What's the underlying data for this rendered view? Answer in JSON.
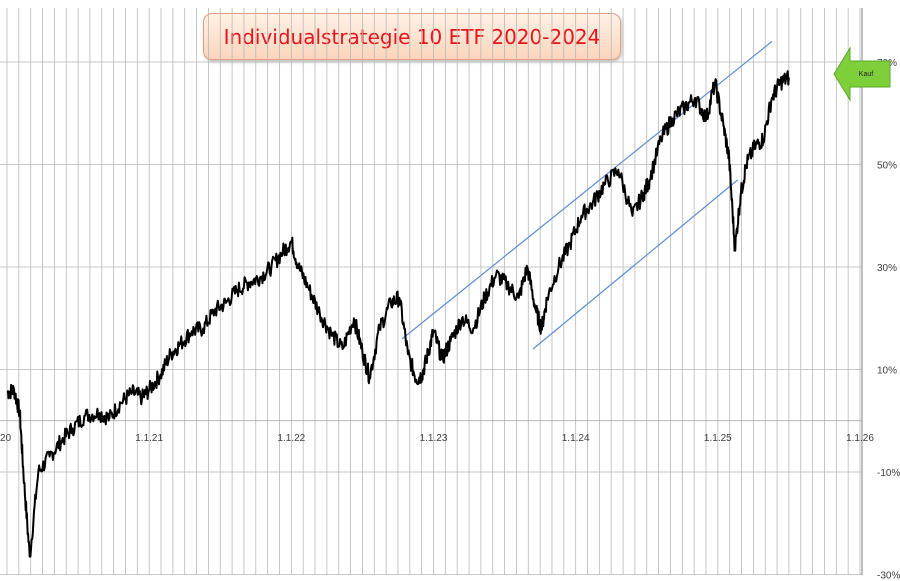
{
  "title": "Individualstrategie 10 ETF 2020-2024",
  "colors": {
    "line": "#000000",
    "channel": "#5b8fd4",
    "grid": "#b8b8b8",
    "title_text": "#e8141b",
    "arrow": "#7fcf3a"
  },
  "annotation": {
    "label": "Kauf",
    "icon": "left-arrow-icon"
  },
  "chart_data": {
    "type": "line",
    "title": "Individualstrategie 10 ETF 2020-2024",
    "xlabel": "",
    "ylabel": "",
    "x_tick_labels": [
      "20",
      "1.1.21",
      "1.1.22",
      "1.1.23",
      "1.1.24",
      "1.1.25",
      "1.1.26"
    ],
    "y_tick_labels": [
      "70%",
      "50%",
      "30%",
      "10%",
      "-10%",
      "-30%"
    ],
    "y_ticks": [
      70,
      50,
      30,
      10,
      -10,
      -30
    ],
    "ylim": [
      -30,
      82
    ],
    "xlim": [
      2020.0,
      2026.0
    ],
    "y_axis_position": "right",
    "grid": true,
    "series": [
      {
        "x": [
          2020.0,
          2020.05,
          2020.09,
          2020.12,
          2020.16,
          2020.22,
          2020.3,
          2020.38,
          2020.46,
          2020.55,
          2020.65,
          2020.72,
          2020.8,
          2020.88,
          2020.95,
          2021.0,
          2021.08,
          2021.15,
          2021.22,
          2021.3,
          2021.38,
          2021.46,
          2021.54,
          2021.62,
          2021.7,
          2021.78,
          2021.86,
          2021.94,
          2022.0,
          2022.05,
          2022.12,
          2022.2,
          2022.28,
          2022.36,
          2022.44,
          2022.5,
          2022.55,
          2022.62,
          2022.7,
          2022.76,
          2022.82,
          2022.88,
          2022.92,
          2022.96,
          2023.0,
          2023.06,
          2023.12,
          2023.2,
          2023.28,
          2023.36,
          2023.44,
          2023.52,
          2023.6,
          2023.66,
          2023.72,
          2023.76,
          2023.8,
          2023.88,
          2023.96,
          2024.04,
          2024.12,
          2024.2,
          2024.3,
          2024.4,
          2024.48,
          2024.52,
          2024.6,
          2024.68,
          2024.76,
          2024.84,
          2024.92,
          2024.98,
          2025.04,
          2025.08,
          2025.12,
          2025.16,
          2025.2,
          2025.26,
          2025.32,
          2025.38,
          2025.44,
          2025.5
        ],
        "values": [
          5.5,
          6.0,
          1.5,
          -12.0,
          -26.5,
          -10.0,
          -7.0,
          -4.0,
          -1.5,
          1.0,
          1.5,
          0.5,
          3.5,
          5.5,
          4.5,
          6.0,
          9.0,
          13.0,
          15.0,
          17.5,
          18.0,
          21.5,
          23.0,
          25.5,
          27.0,
          28.0,
          30.0,
          33.0,
          35.0,
          30.0,
          26.0,
          21.0,
          17.0,
          14.0,
          20.0,
          13.5,
          8.5,
          18.0,
          23.0,
          24.0,
          13.0,
          8.0,
          9.0,
          13.0,
          17.5,
          12.0,
          15.5,
          20.0,
          18.0,
          24.0,
          28.5,
          26.5,
          24.0,
          30.0,
          21.5,
          18.0,
          24.0,
          30.0,
          34.5,
          40.0,
          42.5,
          46.0,
          49.0,
          40.0,
          44.5,
          47.0,
          55.0,
          59.0,
          61.0,
          63.0,
          59.0,
          66.0,
          57.5,
          51.0,
          33.5,
          44.0,
          50.0,
          53.5,
          55.0,
          63.0,
          66.0,
          67.0
        ]
      }
    ],
    "channel_lines": [
      {
        "x": [
          2022.78,
          2025.38
        ],
        "values": [
          16.0,
          74.0
        ]
      },
      {
        "x": [
          2023.7,
          2025.14
        ],
        "values": [
          14.0,
          47.0
        ]
      }
    ]
  }
}
